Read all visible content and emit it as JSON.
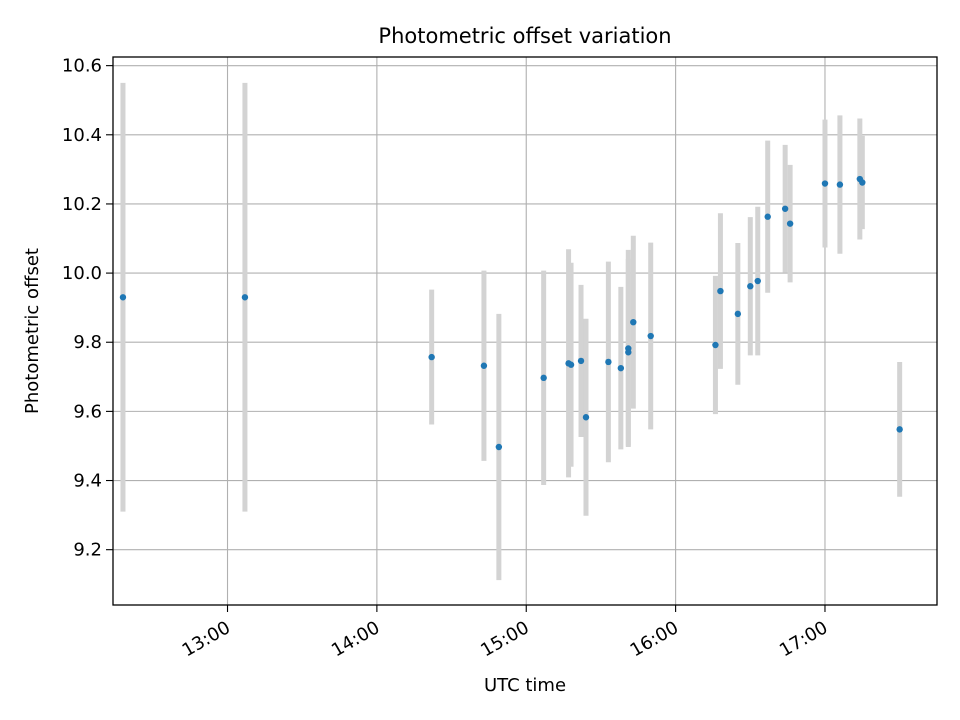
{
  "chart_data": {
    "type": "scatter",
    "title": "Photometric offset variation",
    "xlabel": "UTC time",
    "ylabel": "Photometric offset",
    "x_ticks": [
      "13:00",
      "14:00",
      "15:00",
      "16:00",
      "17:00"
    ],
    "y_ticks": [
      "9.2",
      "9.4",
      "9.6",
      "9.8",
      "10.0",
      "10.2",
      "10.4",
      "10.6"
    ],
    "xlim": [
      "12:14",
      "17:45"
    ],
    "ylim": [
      9.04,
      10.625
    ],
    "grid": true,
    "colors": {
      "point": "#1f77b4",
      "errorbar": "#d3d3d3",
      "grid": "#b0b0b0"
    },
    "points": [
      {
        "x": "12:18",
        "y": 9.93,
        "yerr": 0.62
      },
      {
        "x": "13:07",
        "y": 9.93,
        "yerr": 0.62
      },
      {
        "x": "14:22",
        "y": 9.757,
        "yerr": 0.195
      },
      {
        "x": "14:43",
        "y": 9.732,
        "yerr": 0.275
      },
      {
        "x": "14:49",
        "y": 9.497,
        "yerr": 0.385
      },
      {
        "x": "15:07",
        "y": 9.697,
        "yerr": 0.31
      },
      {
        "x": "15:17",
        "y": 9.739,
        "yerr": 0.33
      },
      {
        "x": "15:18",
        "y": 9.735,
        "yerr": 0.295
      },
      {
        "x": "15:22",
        "y": 9.746,
        "yerr": 0.22
      },
      {
        "x": "15:24",
        "y": 9.583,
        "yerr": 0.285
      },
      {
        "x": "15:33",
        "y": 9.743,
        "yerr": 0.29
      },
      {
        "x": "15:38",
        "y": 9.725,
        "yerr": 0.235
      },
      {
        "x": "15:41",
        "y": 9.782,
        "yerr": 0.285
      },
      {
        "x": "15:41",
        "y": 9.771,
        "yerr": 0.27
      },
      {
        "x": "15:43",
        "y": 9.858,
        "yerr": 0.25
      },
      {
        "x": "15:50",
        "y": 9.818,
        "yerr": 0.27
      },
      {
        "x": "16:16",
        "y": 9.792,
        "yerr": 0.2
      },
      {
        "x": "16:18",
        "y": 9.948,
        "yerr": 0.225
      },
      {
        "x": "16:25",
        "y": 9.882,
        "yerr": 0.205
      },
      {
        "x": "16:30",
        "y": 9.962,
        "yerr": 0.2
      },
      {
        "x": "16:33",
        "y": 9.977,
        "yerr": 0.215
      },
      {
        "x": "16:37",
        "y": 10.163,
        "yerr": 0.22
      },
      {
        "x": "16:44",
        "y": 10.186,
        "yerr": 0.185
      },
      {
        "x": "16:46",
        "y": 10.143,
        "yerr": 0.17
      },
      {
        "x": "17:00",
        "y": 10.259,
        "yerr": 0.185
      },
      {
        "x": "17:06",
        "y": 10.256,
        "yerr": 0.2
      },
      {
        "x": "17:14",
        "y": 10.272,
        "yerr": 0.175
      },
      {
        "x": "17:15",
        "y": 10.262,
        "yerr": 0.135
      },
      {
        "x": "17:30",
        "y": 9.548,
        "yerr": 0.195
      }
    ]
  }
}
